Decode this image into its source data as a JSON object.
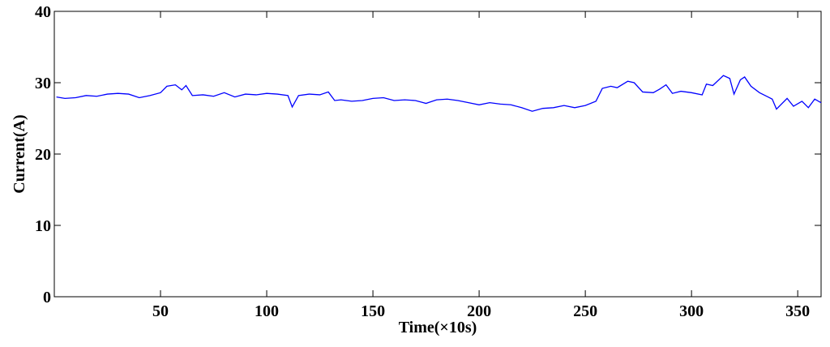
{
  "chart_data": {
    "type": "line",
    "xlabel": "Time(×10s)",
    "ylabel": "Current(A)",
    "x": [
      1,
      5,
      10,
      15,
      20,
      25,
      30,
      35,
      40,
      45,
      50,
      53,
      57,
      60,
      62,
      65,
      70,
      75,
      80,
      85,
      90,
      95,
      100,
      105,
      110,
      112,
      115,
      120,
      125,
      129,
      132,
      135,
      140,
      145,
      150,
      155,
      160,
      165,
      170,
      175,
      180,
      185,
      190,
      195,
      200,
      205,
      210,
      215,
      220,
      225,
      230,
      235,
      240,
      245,
      250,
      255,
      258,
      262,
      265,
      270,
      273,
      277,
      282,
      285,
      288,
      291,
      295,
      300,
      305,
      307,
      310,
      315,
      318,
      320,
      323,
      325,
      328,
      332,
      336,
      338,
      340,
      345,
      348,
      352,
      355,
      358,
      361
    ],
    "series": [
      {
        "name": "Current",
        "color": "#0000ff",
        "values": [
          28,
          27.8,
          27.9,
          28.2,
          28.1,
          28.4,
          28.5,
          28.4,
          27.9,
          28.2,
          28.6,
          29.5,
          29.7,
          29,
          29.6,
          28.2,
          28.3,
          28.1,
          28.6,
          28,
          28.4,
          28.3,
          28.5,
          28.4,
          28.2,
          26.6,
          28.2,
          28.4,
          28.3,
          28.7,
          27.5,
          27.6,
          27.4,
          27.5,
          27.8,
          27.9,
          27.5,
          27.6,
          27.5,
          27.1,
          27.6,
          27.7,
          27.5,
          27.2,
          26.9,
          27.2,
          27,
          26.9,
          26.5,
          26,
          26.4,
          26.5,
          26.8,
          26.5,
          26.8,
          27.4,
          29.2,
          29.5,
          29.3,
          30.2,
          30,
          28.7,
          28.6,
          29.1,
          29.7,
          28.5,
          28.8,
          28.6,
          28.3,
          29.8,
          29.6,
          31,
          30.6,
          28.4,
          30.4,
          30.8,
          29.5,
          28.6,
          28,
          27.7,
          26.3,
          27.8,
          26.7,
          27.4,
          26.5,
          27.7,
          27.2
        ]
      }
    ],
    "xlim": [
      0,
      361
    ],
    "xticks": [
      50,
      100,
      150,
      200,
      250,
      300,
      350
    ],
    "ylim": [
      0,
      40
    ],
    "yticks": [
      0,
      10,
      20,
      30,
      40
    ]
  }
}
